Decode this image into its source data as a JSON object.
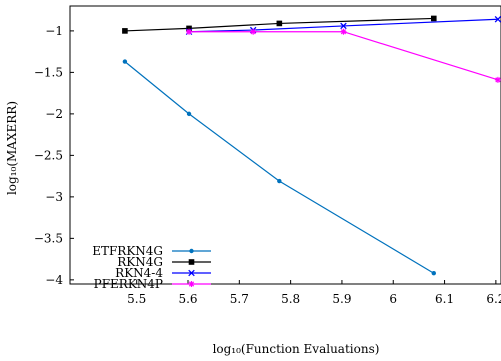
{
  "chart_data": {
    "type": "line",
    "xlabel": "log₁₀(Function Evaluations)",
    "ylabel": "log₁₀(MAXERR)",
    "xlim": [
      5.37,
      6.21
    ],
    "ylim": [
      -4.05,
      -0.7
    ],
    "xticks": [
      5.5,
      5.6,
      5.7,
      5.8,
      5.9,
      6.0,
      6.1,
      6.2
    ],
    "xtick_labels": [
      "5.5",
      "5.6",
      "5.7",
      "5.8",
      "5.9",
      "6",
      "6.1",
      "6.2"
    ],
    "yticks": [
      -1,
      -1.5,
      -2,
      -2.5,
      -3,
      -3.5,
      -4
    ],
    "ytick_labels": [
      "−1",
      "−1.5",
      "−2",
      "−2.5",
      "−3",
      "−3.5",
      "−4"
    ],
    "grid": false,
    "legend_position": "bottom-left",
    "series": [
      {
        "name": "ETFRKN4G",
        "color": "#0072bd",
        "marker": "dot",
        "x": [
          5.477,
          5.602,
          5.778,
          6.079
        ],
        "y": [
          -1.37,
          -2.0,
          -2.81,
          -3.92
        ]
      },
      {
        "name": "RKN4G",
        "color": "#000000",
        "marker": "square",
        "x": [
          5.477,
          5.602,
          5.778,
          6.079
        ],
        "y": [
          -1.0,
          -0.97,
          -0.91,
          -0.85
        ]
      },
      {
        "name": "RKN4-4",
        "color": "#0000ff",
        "marker": "x",
        "x": [
          5.602,
          5.727,
          5.903,
          6.204
        ],
        "y": [
          -1.01,
          -0.99,
          -0.94,
          -0.86
        ]
      },
      {
        "name": "PFERKN4P",
        "color": "#ff00ff",
        "marker": "asterisk",
        "x": [
          5.602,
          5.727,
          5.903,
          6.204
        ],
        "y": [
          -1.01,
          -1.01,
          -1.01,
          -1.59
        ]
      }
    ]
  }
}
